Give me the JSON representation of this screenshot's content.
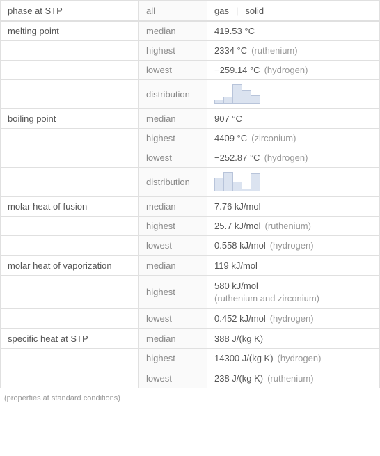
{
  "rows": [
    {
      "group": "phase at STP",
      "rowspan": 1,
      "col2": "all",
      "value_parts": [
        "gas",
        "solid"
      ],
      "value_type": "sep"
    },
    {
      "group": "melting point",
      "rowspan": 4,
      "col2": "median",
      "value": "419.53 °C"
    },
    {
      "col2": "highest",
      "value": "2334 °C",
      "note": "(ruthenium)"
    },
    {
      "col2": "lowest",
      "value": "−259.14 °C",
      "note": "(hydrogen)"
    },
    {
      "col2": "distribution",
      "value_type": "histogram",
      "bars": [
        6,
        10,
        28,
        20,
        12
      ],
      "bar_color": "#dbe3f0",
      "bar_border": "#b8c4da"
    },
    {
      "group": "boiling point",
      "rowspan": 4,
      "col2": "median",
      "value": "907 °C"
    },
    {
      "col2": "highest",
      "value": "4409 °C",
      "note": "(zirconium)"
    },
    {
      "col2": "lowest",
      "value": "−252.87 °C",
      "note": "(hydrogen)"
    },
    {
      "col2": "distribution",
      "value_type": "histogram",
      "bars": [
        20,
        28,
        14,
        4,
        26
      ],
      "bar_color": "#dbe3f0",
      "bar_border": "#b8c4da"
    },
    {
      "group": "molar heat of fusion",
      "rowspan": 3,
      "col2": "median",
      "value": "7.76 kJ/mol"
    },
    {
      "col2": "highest",
      "value": "25.7 kJ/mol",
      "note": "(ruthenium)"
    },
    {
      "col2": "lowest",
      "value": "0.558 kJ/mol",
      "note": "(hydrogen)"
    },
    {
      "group": "molar heat of vaporization",
      "rowspan": 3,
      "col2": "median",
      "value": "119 kJ/mol"
    },
    {
      "col2": "highest",
      "value_type": "multiline",
      "value": "580 kJ/mol",
      "note_below": "(ruthenium and zirconium)"
    },
    {
      "col2": "lowest",
      "value": "0.452 kJ/mol",
      "note": "(hydrogen)"
    },
    {
      "group": "specific heat at STP",
      "rowspan": 3,
      "col2": "median",
      "value": "388 J/(kg K)"
    },
    {
      "col2": "highest",
      "value": "14300 J/(kg K)",
      "note": "(hydrogen)"
    },
    {
      "col2": "lowest",
      "value": "238 J/(kg K)",
      "note": "(ruthenium)"
    }
  ],
  "footnote": "(properties at standard conditions)",
  "colors": {
    "text_primary": "#555555",
    "text_secondary": "#888888",
    "text_note": "#999999",
    "border": "#e0e0e0",
    "col2_bg": "#fafafa",
    "bg": "#ffffff"
  }
}
